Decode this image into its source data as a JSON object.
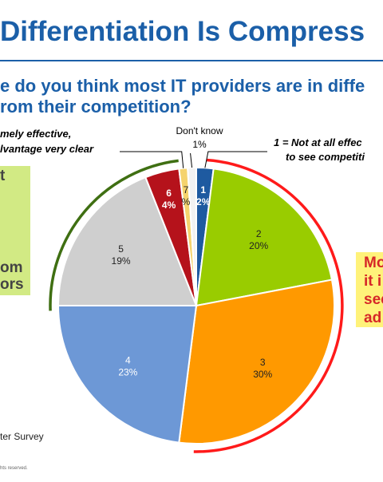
{
  "header": {
    "title": "Differentiation Is Compress",
    "question_line1": "e do you think most IT providers are in diffe",
    "question_line2": "rom their competition?"
  },
  "chart_data": {
    "type": "pie",
    "title": "",
    "slices": [
      {
        "category": "1",
        "value": 2,
        "label": "2%",
        "color": "#1e5aa0"
      },
      {
        "category": "2",
        "value": 20,
        "label": "20%",
        "color": "#99cc00"
      },
      {
        "category": "3",
        "value": 30,
        "label": "30%",
        "color": "#ff9900"
      },
      {
        "category": "4",
        "value": 23,
        "label": "23%",
        "color": "#6d98d6"
      },
      {
        "category": "5",
        "value": 19,
        "label": "19%",
        "color": "#cfcfcf"
      },
      {
        "category": "6",
        "value": 4,
        "label": "4%",
        "color": "#b5121b"
      },
      {
        "category": "7",
        "value": 1,
        "label": "%",
        "color": "#f5d36e"
      },
      {
        "category": "Don't know",
        "value": 1,
        "label": "1%",
        "color": "#f2f2f2"
      }
    ],
    "callouts": {
      "top_left_line1": "mely effective,",
      "top_left_line2": "lvantage very clear",
      "dont_know": "Don't know",
      "dont_know_value": "1%",
      "right_line1": "1 = Not at all effec",
      "right_line2": "to see competiti"
    },
    "brackets": {
      "left_color": "#3f6f12",
      "right_color": "#ff1a1a"
    }
  },
  "left_box": {
    "line1": "t",
    "line2": "om",
    "line3": "ors",
    "color": "#d2ea84"
  },
  "right_box": {
    "line1": "Mo",
    "line2": "it i",
    "line3": "sec",
    "line4": "ad",
    "color": "#fff27a"
  },
  "footer": {
    "source": "ter Survey",
    "copyright": "hts reserved."
  }
}
